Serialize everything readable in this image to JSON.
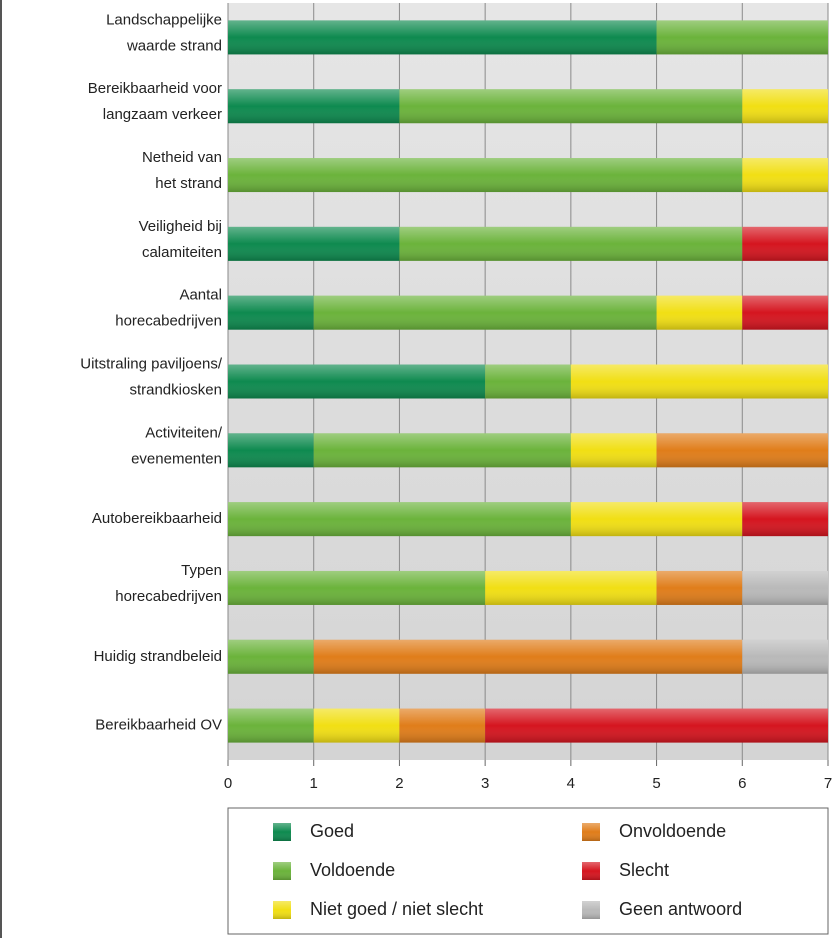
{
  "chart_data": {
    "type": "stacked-bar-horizontal",
    "categories": [
      "Landschappelijke\nwaarde strand",
      "Bereikbaarheid voor\nlangzaam verkeer",
      "Netheid van\nhet strand",
      "Veiligheid bij\ncalamiteiten",
      "Aantal\nhorecabedrijven",
      "Uitstraling paviljoens/\nstrandkiosken",
      "Activiteiten/\nevenementen",
      "Autobereikbaarheid",
      "Typen\nhorecabedrijven",
      "Huidig strandbeleid",
      "Bereikbaarheid OV"
    ],
    "series": [
      {
        "name": "Goed",
        "color": "#0e8a4f",
        "values": [
          5,
          2,
          0,
          2,
          1,
          3,
          1,
          0,
          0,
          0,
          0
        ]
      },
      {
        "name": "Voldoende",
        "color": "#6bb33b",
        "values": [
          2,
          4,
          6,
          4,
          4,
          1,
          3,
          4,
          3,
          1,
          1
        ]
      },
      {
        "name": "Niet goed / niet slecht",
        "color": "#f1df14",
        "values": [
          0,
          1,
          1,
          0,
          1,
          3,
          1,
          2,
          2,
          0,
          1
        ]
      },
      {
        "name": "Onvoldoende",
        "color": "#e07d1a",
        "values": [
          0,
          0,
          0,
          0,
          0,
          0,
          2,
          0,
          1,
          5,
          1
        ]
      },
      {
        "name": "Slecht",
        "color": "#d5151f",
        "values": [
          0,
          0,
          0,
          1,
          1,
          0,
          0,
          1,
          0,
          0,
          4
        ]
      },
      {
        "name": "Geen antwoord",
        "color": "#b9b9b9",
        "values": [
          0,
          0,
          0,
          0,
          0,
          0,
          0,
          0,
          1,
          1,
          0
        ]
      }
    ],
    "xlim": [
      0,
      7
    ],
    "xticks": [
      0,
      1,
      2,
      3,
      4,
      5,
      6,
      7
    ],
    "grid": true
  }
}
